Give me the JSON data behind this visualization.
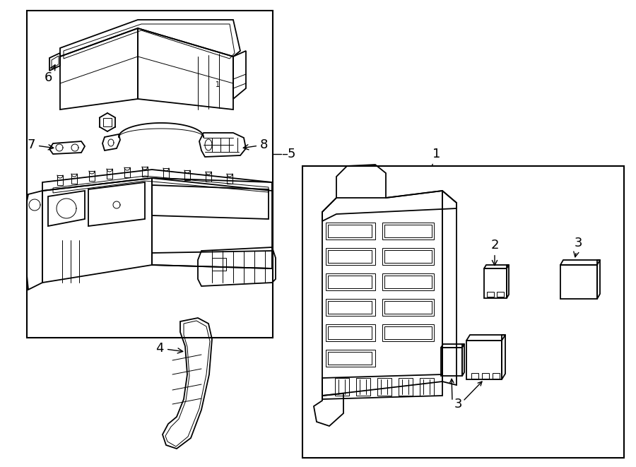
{
  "bg_color": "#ffffff",
  "line_color": "#000000",
  "fig_width": 9.0,
  "fig_height": 6.61,
  "dpi": 100,
  "lw_main": 1.3,
  "lw_thin": 0.7,
  "label_fontsize": 13
}
